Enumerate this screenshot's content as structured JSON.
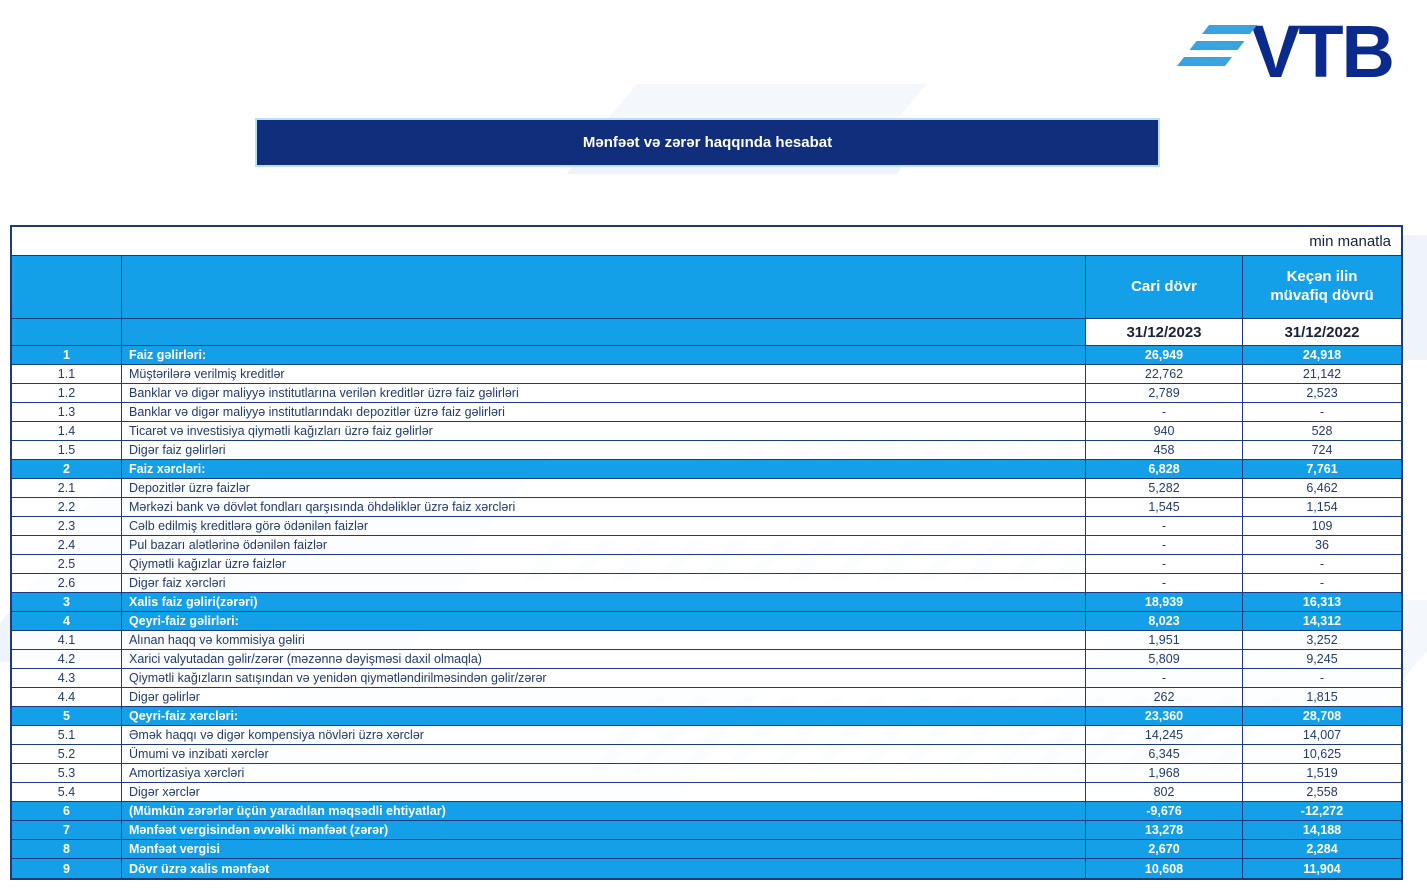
{
  "logo": {
    "text": "VTB"
  },
  "title_bar": {
    "text": "Mənfəət və zərər haqqında hesabat"
  },
  "colors": {
    "accent_cyan": "#14A0E8",
    "brand_navy": "#112E7C",
    "border_navy": "#1C3A80",
    "logo_navy": "#0A2B8C",
    "stripe_blue": "#3BA2E0"
  },
  "table": {
    "unit_note": "min manatla",
    "columns": {
      "current_label": "Cari dövr",
      "previous_label": "Keçən ilin müvafiq dövrü",
      "current_date": "31/12/2023",
      "previous_date": "31/12/2022"
    },
    "rows": [
      {
        "no": "1",
        "label": "Faiz gəlirləri:",
        "current": "26,949",
        "previous": "24,918",
        "section": true
      },
      {
        "no": "1.1",
        "label": "Müştərilərə verilmiş kreditlər",
        "current": "22,762",
        "previous": "21,142",
        "section": false
      },
      {
        "no": "1.2",
        "label": "Banklar və digər maliyyə institutlarına verilən kreditlər üzrə faiz gəlirləri",
        "current": "2,789",
        "previous": "2,523",
        "section": false
      },
      {
        "no": "1.3",
        "label": "Banklar və digər maliyyə institutlarındakı depozitlər üzrə faiz gəlirləri",
        "current": "-",
        "previous": "-",
        "section": false
      },
      {
        "no": "1.4",
        "label": "Ticarət və investisiya qiymətli kağızları üzrə faiz gəlirlər",
        "current": "940",
        "previous": "528",
        "section": false
      },
      {
        "no": "1.5",
        "label": "Digər faiz gəlirləri",
        "current": "458",
        "previous": "724",
        "section": false
      },
      {
        "no": "2",
        "label": "Faiz xərcləri:",
        "current": "6,828",
        "previous": "7,761",
        "section": true
      },
      {
        "no": "2.1",
        "label": "Depozitlər üzrə faizlər",
        "current": "5,282",
        "previous": "6,462",
        "section": false
      },
      {
        "no": "2.2",
        "label": "Mərkəzi bank və dövlət fondları qarşısında öhdəliklər üzrə faiz xərcləri",
        "current": "1,545",
        "previous": "1,154",
        "section": false
      },
      {
        "no": "2.3",
        "label": "Cəlb edilmiş kreditlərə görə ödənilən faizlər",
        "current": "-",
        "previous": "109",
        "section": false
      },
      {
        "no": "2.4",
        "label": "Pul bazarı alətlərinə ödənilən faizlər",
        "current": "-",
        "previous": "36",
        "section": false
      },
      {
        "no": "2.5",
        "label": "Qiymətli kağızlar üzrə faizlər",
        "current": "-",
        "previous": "-",
        "section": false
      },
      {
        "no": "2.6",
        "label": "Digər faiz xərcləri",
        "current": "-",
        "previous": "-",
        "section": false
      },
      {
        "no": "3",
        "label": "Xalis faiz gəliri(zərəri)",
        "current": "18,939",
        "previous": "16,313",
        "section": true
      },
      {
        "no": "4",
        "label": "Qeyri-faiz gəlirləri:",
        "current": "8,023",
        "previous": "14,312",
        "section": true
      },
      {
        "no": "4.1",
        "label": "Alınan haqq və kommisiya gəliri",
        "current": "1,951",
        "previous": "3,252",
        "section": false
      },
      {
        "no": "4.2",
        "label": "Xarici valyutadan gəlir/zərər (məzənnə dəyişməsi daxil olmaqla)",
        "current": "5,809",
        "previous": "9,245",
        "section": false
      },
      {
        "no": "4.3",
        "label": "Qiymətli kağızların satışından və yenidən qiymətləndirilməsindən gəlir/zərər",
        "current": "-",
        "previous": "-",
        "section": false
      },
      {
        "no": "4.4",
        "label": "Digər gəlirlər",
        "current": "262",
        "previous": "1,815",
        "section": false
      },
      {
        "no": "5",
        "label": "Qeyri-faiz xərcləri:",
        "current": "23,360",
        "previous": "28,708",
        "section": true
      },
      {
        "no": "5.1",
        "label": "Əmək haqqı və digər kompensiya növləri üzrə xərclər",
        "current": "14,245",
        "previous": "14,007",
        "section": false
      },
      {
        "no": "5.2",
        "label": "Ümumi və inzibati xərclər",
        "current": "6,345",
        "previous": "10,625",
        "section": false
      },
      {
        "no": "5.3",
        "label": "Amortizasiya xərcləri",
        "current": "1,968",
        "previous": "1,519",
        "section": false
      },
      {
        "no": "5.4",
        "label": "Digər xərclər",
        "current": "802",
        "previous": "2,558",
        "section": false
      },
      {
        "no": "6",
        "label": "(Mümkün zərərlər üçün yaradılan məqsədli ehtiyatlar)",
        "current": "-9,676",
        "previous": "-12,272",
        "section": true
      },
      {
        "no": "7",
        "label": "Mənfəət vergisindən əvvəlki mənfəət (zərər)",
        "current": "13,278",
        "previous": "14,188",
        "section": true
      },
      {
        "no": "8",
        "label": "Mənfəət vergisi",
        "current": "2,670",
        "previous": "2,284",
        "section": true
      },
      {
        "no": "9",
        "label": "Dövr üzrə xalis mənfəət",
        "current": "10,608",
        "previous": "11,904",
        "section": true
      }
    ]
  }
}
